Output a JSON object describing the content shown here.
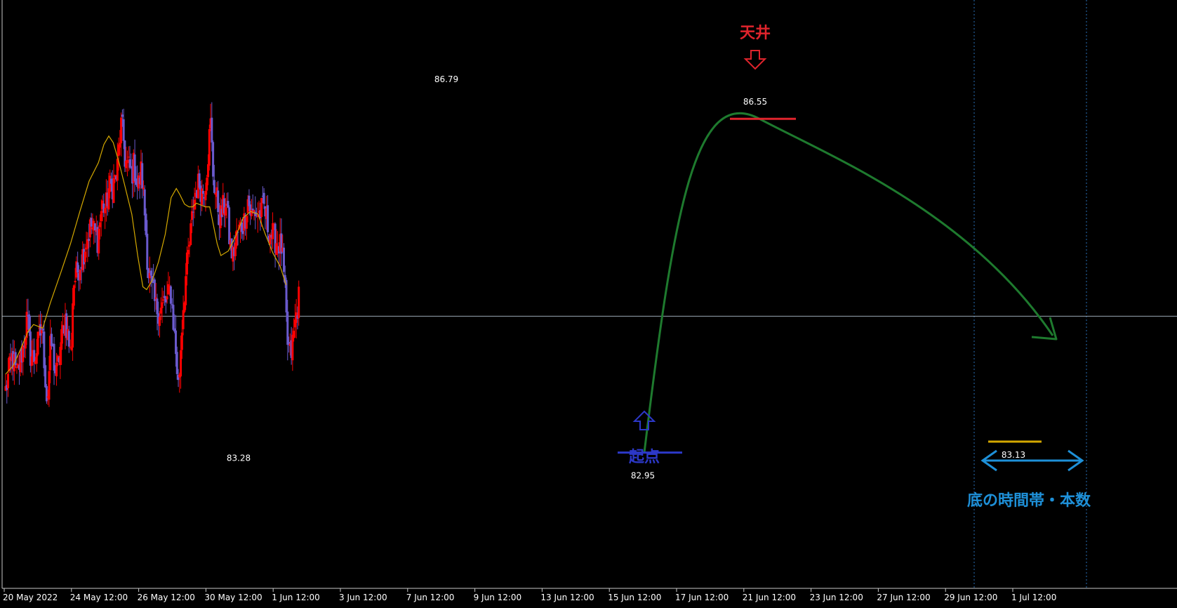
{
  "chart_data": {
    "type": "candlestick",
    "x_ticks": [
      "20 May 2022",
      "24 May 12:00",
      "26 May 12:00",
      "30 May 12:00",
      "1 Jun 12:00",
      "3 Jun 12:00",
      "7 Jun 12:00",
      "9 Jun 12:00",
      "13 Jun 12:00",
      "15 Jun 12:00",
      "17 Jun 12:00",
      "21 Jun 12:00",
      "23 Jun 12:00",
      "27 Jun 12:00",
      "29 Jun 12:00",
      "1 Jul 12:00"
    ],
    "ylim": [
      81.45,
      87.85
    ],
    "horizontal_line": 84.41,
    "close_path": [
      [
        0,
        83.6
      ],
      [
        18,
        83.98
      ],
      [
        30,
        83.75
      ],
      [
        48,
        84.09
      ],
      [
        58,
        84.4
      ],
      [
        66,
        84.0
      ],
      [
        78,
        83.95
      ],
      [
        98,
        84.3
      ],
      [
        112,
        83.45
      ],
      [
        122,
        84.15
      ],
      [
        136,
        83.75
      ],
      [
        160,
        84.42
      ],
      [
        176,
        83.96
      ],
      [
        182,
        84.75
      ],
      [
        205,
        85.05
      ],
      [
        230,
        85.4
      ],
      [
        248,
        85.25
      ],
      [
        260,
        85.62
      ],
      [
        270,
        85.58
      ],
      [
        278,
        85.8
      ],
      [
        286,
        85.82
      ],
      [
        300,
        85.95
      ],
      [
        306,
        86.3
      ],
      [
        312,
        86.5
      ],
      [
        318,
        86.32
      ],
      [
        322,
        86.1
      ],
      [
        330,
        86.04
      ],
      [
        340,
        85.96
      ],
      [
        346,
        86.07
      ],
      [
        356,
        85.8
      ],
      [
        366,
        86.0
      ],
      [
        376,
        85.48
      ],
      [
        384,
        84.9
      ],
      [
        394,
        84.7
      ],
      [
        404,
        84.5
      ],
      [
        416,
        84.48
      ],
      [
        428,
        84.55
      ],
      [
        436,
        84.58
      ],
      [
        444,
        84.72
      ],
      [
        452,
        84.35
      ],
      [
        458,
        84.05
      ],
      [
        466,
        83.62
      ],
      [
        472,
        84.08
      ],
      [
        478,
        84.5
      ],
      [
        486,
        84.86
      ],
      [
        496,
        85.2
      ],
      [
        506,
        85.62
      ],
      [
        514,
        85.8
      ],
      [
        522,
        85.86
      ],
      [
        530,
        85.75
      ],
      [
        538,
        85.85
      ],
      [
        546,
        86.2
      ],
      [
        552,
        86.52
      ],
      [
        560,
        85.9
      ],
      [
        568,
        85.7
      ],
      [
        578,
        85.48
      ],
      [
        588,
        85.6
      ],
      [
        594,
        85.7
      ],
      [
        604,
        85.2
      ],
      [
        612,
        85.05
      ],
      [
        624,
        85.3
      ],
      [
        636,
        85.4
      ],
      [
        644,
        85.45
      ],
      [
        652,
        85.7
      ],
      [
        662,
        85.5
      ],
      [
        672,
        85.55
      ],
      [
        684,
        85.52
      ],
      [
        696,
        85.6
      ],
      [
        706,
        85.4
      ],
      [
        716,
        85.3
      ],
      [
        726,
        85.25
      ],
      [
        736,
        85.2
      ],
      [
        744,
        85.15
      ],
      [
        752,
        84.7
      ],
      [
        760,
        84.1
      ],
      [
        768,
        83.96
      ],
      [
        776,
        84.2
      ],
      [
        782,
        84.4
      ],
      [
        790,
        84.6
      ]
    ],
    "moving_average": [
      [
        0,
        83.78
      ],
      [
        20,
        83.87
      ],
      [
        40,
        84.05
      ],
      [
        60,
        84.24
      ],
      [
        75,
        84.32
      ],
      [
        100,
        84.28
      ],
      [
        120,
        84.55
      ],
      [
        150,
        84.9
      ],
      [
        175,
        85.2
      ],
      [
        200,
        85.55
      ],
      [
        225,
        85.88
      ],
      [
        250,
        86.08
      ],
      [
        265,
        86.28
      ],
      [
        278,
        86.37
      ],
      [
        290,
        86.3
      ],
      [
        305,
        86.09
      ],
      [
        320,
        85.85
      ],
      [
        340,
        85.52
      ],
      [
        356,
        85.07
      ],
      [
        370,
        84.73
      ],
      [
        380,
        84.7
      ],
      [
        395,
        84.8
      ],
      [
        412,
        85.0
      ],
      [
        430,
        85.3
      ],
      [
        446,
        85.7
      ],
      [
        460,
        85.8
      ],
      [
        470,
        85.73
      ],
      [
        482,
        85.63
      ],
      [
        494,
        85.6
      ],
      [
        504,
        85.6
      ],
      [
        514,
        85.64
      ],
      [
        526,
        85.62
      ],
      [
        538,
        85.6
      ],
      [
        550,
        85.6
      ],
      [
        560,
        85.4
      ],
      [
        570,
        85.2
      ],
      [
        580,
        85.07
      ],
      [
        600,
        85.12
      ],
      [
        620,
        85.28
      ],
      [
        640,
        85.48
      ],
      [
        660,
        85.55
      ],
      [
        680,
        85.52
      ],
      [
        700,
        85.3
      ],
      [
        720,
        85.1
      ],
      [
        740,
        84.95
      ],
      [
        756,
        84.75
      ]
    ],
    "candle_count": 237,
    "markers": [
      {
        "id": "high1",
        "label": "86.79",
        "value": 86.79
      },
      {
        "id": "low1",
        "label": "83.28",
        "value": 83.28
      },
      {
        "id": "start",
        "label": "82.95",
        "value": 82.95
      },
      {
        "id": "top",
        "label": "86.55",
        "value": 86.55
      },
      {
        "id": "bottom",
        "label": "83.13",
        "value": 83.13
      }
    ],
    "annotations": {
      "top_label": "天井",
      "start_label": "起点",
      "range_label": "底の時間帯・本数"
    },
    "colors": {
      "background": "#000000",
      "bull_candle": "#ff0000",
      "bear_candle": "#6a5acd",
      "moving_average": "#d4a800",
      "horizontal_line": "#9aa8b4",
      "curve": "#1e7a2e",
      "top_annotation": "#e0242c",
      "start_annotation": "#2c38c8",
      "range_annotation": "#1e90d8",
      "bottom_line": "#d4a800",
      "vline": "#2a6fb8"
    },
    "grid": false
  }
}
